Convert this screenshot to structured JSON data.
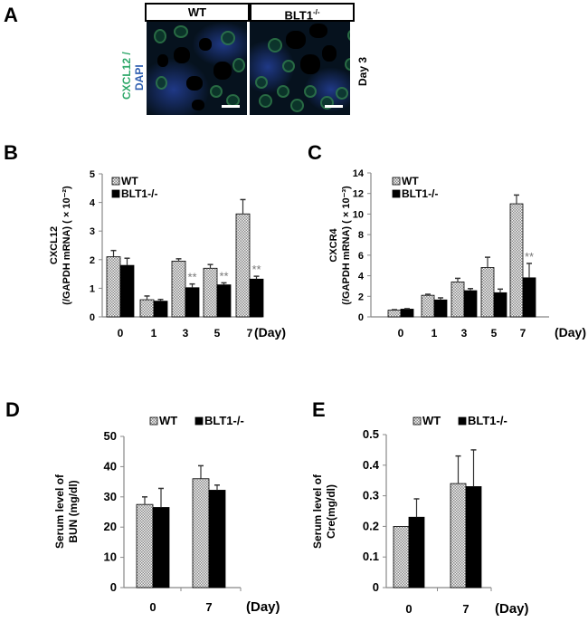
{
  "panels": {
    "A": {
      "letter": "A",
      "headers": [
        {
          "label": "WT",
          "sup": ""
        },
        {
          "label": "BLT1",
          "sup": "-/-"
        }
      ],
      "stain_label_green": "CXCL12 /",
      "stain_label_blue": "DAPI",
      "timepoint_label": "Day 3",
      "colors": {
        "green": "#2fa86a",
        "blue": "#2f5fb0"
      }
    },
    "B": {
      "letter": "B"
    },
    "C": {
      "letter": "C"
    },
    "D": {
      "letter": "D"
    },
    "E": {
      "letter": "E"
    }
  },
  "chart_data": [
    {
      "id": "B",
      "type": "bar",
      "title": "",
      "xlabel": "(Day)",
      "ylabel_line1": "CXCL12",
      "ylabel_line2": "(/GAPDH mRNA) ( × 10⁻²)",
      "categories": [
        "0",
        "1",
        "3",
        "5",
        "7"
      ],
      "yticks": [
        0,
        1,
        2,
        3,
        4,
        5
      ],
      "ylim": [
        0,
        5
      ],
      "legend_position": "top-left inside",
      "series": [
        {
          "name": "WT",
          "pattern": "dotted",
          "values": [
            2.1,
            0.6,
            1.95,
            1.7,
            3.6
          ],
          "errors": [
            0.22,
            0.13,
            0.08,
            0.13,
            0.5
          ]
        },
        {
          "name": "BLT1-/-",
          "pattern": "solid",
          "values": [
            1.8,
            0.55,
            1.02,
            1.12,
            1.32
          ],
          "errors": [
            0.25,
            0.06,
            0.13,
            0.07,
            0.1
          ]
        }
      ],
      "annotations": [
        {
          "category": "3",
          "series": "BLT1-/-",
          "text": "**"
        },
        {
          "category": "5",
          "series": "BLT1-/-",
          "text": "**"
        },
        {
          "category": "7",
          "series": "BLT1-/-",
          "text": "**"
        }
      ]
    },
    {
      "id": "C",
      "type": "bar",
      "title": "",
      "xlabel": "(Day)",
      "ylabel_line1": "CXCR4",
      "ylabel_line2": "(/GAPDH mRNA) ( × 10⁻³)",
      "categories": [
        "0",
        "1",
        "3",
        "5",
        "7"
      ],
      "yticks": [
        0,
        2,
        4,
        6,
        8,
        10,
        12,
        14
      ],
      "ylim": [
        0,
        14
      ],
      "legend_position": "top-left inside",
      "series": [
        {
          "name": "WT",
          "pattern": "dotted",
          "values": [
            0.65,
            2.1,
            3.4,
            4.8,
            11.0
          ],
          "errors": [
            0.05,
            0.1,
            0.35,
            1.0,
            0.85
          ]
        },
        {
          "name": "BLT1-/-",
          "pattern": "solid",
          "values": [
            0.75,
            1.65,
            2.55,
            2.35,
            3.8
          ],
          "errors": [
            0.05,
            0.2,
            0.2,
            0.35,
            1.4
          ]
        }
      ],
      "annotations": [
        {
          "category": "7",
          "series": "BLT1-/-",
          "text": "**"
        }
      ]
    },
    {
      "id": "D",
      "type": "bar",
      "title": "",
      "xlabel": "(Day)",
      "ylabel_line1": "Serum level of",
      "ylabel_line2": "BUN (mg/dl)",
      "categories": [
        "0",
        "7"
      ],
      "yticks": [
        0,
        10,
        20,
        30,
        40,
        50
      ],
      "ylim": [
        0,
        50
      ],
      "legend_position": "top center",
      "series": [
        {
          "name": "WT",
          "pattern": "dotted",
          "values": [
            27.5,
            36.0
          ],
          "errors": [
            2.5,
            4.3
          ]
        },
        {
          "name": "BLT1-/-",
          "pattern": "solid",
          "values": [
            26.5,
            32.2
          ],
          "errors": [
            6.3,
            1.7
          ]
        }
      ],
      "annotations": []
    },
    {
      "id": "E",
      "type": "bar",
      "title": "",
      "xlabel": "(Day)",
      "ylabel_line1": "Serum level of",
      "ylabel_line2": "Cre(mg/dl)",
      "categories": [
        "0",
        "7"
      ],
      "yticks": [
        0,
        0.1,
        0.2,
        0.3,
        0.4,
        0.5
      ],
      "ylim": [
        0,
        0.5
      ],
      "legend_position": "top center",
      "series": [
        {
          "name": "WT",
          "pattern": "dotted",
          "values": [
            0.2,
            0.34
          ],
          "errors": [
            0.0,
            0.09
          ]
        },
        {
          "name": "BLT1-/-",
          "pattern": "solid",
          "values": [
            0.23,
            0.33
          ],
          "errors": [
            0.06,
            0.12
          ]
        }
      ],
      "annotations": []
    }
  ]
}
